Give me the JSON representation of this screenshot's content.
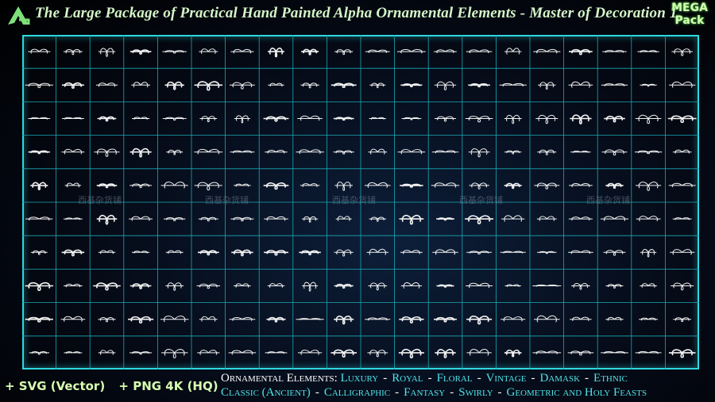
{
  "header": {
    "title": "The Large Package of Practical Hand Painted Alpha Ornamental Elements - Master of Decoration 1",
    "badge": [
      "MEGA",
      "Pack"
    ]
  },
  "watermark": "西基杂货铺",
  "formats": [
    "+ SVG (Vector)",
    "+ PNG 4K (HQ)"
  ],
  "features": {
    "label": "Ornamental Elements:",
    "separator": "-",
    "lines": [
      [
        "Luxury",
        "Royal",
        "Floral",
        "Vintage",
        "Damask",
        "Ethnic"
      ],
      [
        "Classic (Ancient)",
        "Calligraphic",
        "Fantasy",
        "Swirly",
        "Geometric and Holy Feasts"
      ]
    ]
  }
}
